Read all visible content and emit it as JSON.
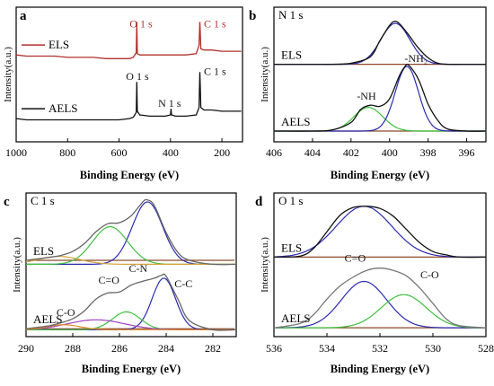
{
  "chart_data": [
    {
      "panel": "a",
      "type": "line",
      "x_label": "Binding Energy (eV)",
      "y_label": "Intensity(a.u.)",
      "xlim": [
        1000,
        120
      ],
      "x_ticks": [
        1000,
        800,
        600,
        400,
        200
      ],
      "series": [
        {
          "name": "ELS",
          "color": "#b0302a",
          "x": [
            1000,
            960,
            900,
            850,
            800,
            750,
            700,
            650,
            600,
            560,
            545,
            533,
            531,
            529,
            520,
            480,
            420,
            400,
            398,
            396,
            380,
            340,
            300,
            289,
            286,
            284,
            282,
            270,
            240,
            200,
            160,
            125
          ],
          "y": [
            71,
            70,
            70,
            70,
            69,
            69,
            69,
            68,
            68,
            68,
            69,
            73,
            98,
            72,
            71,
            71,
            71,
            71,
            71,
            71,
            71,
            71,
            72,
            79,
            98,
            89,
            76,
            75,
            75,
            74,
            74,
            74
          ]
        },
        {
          "name": "AELS",
          "color": "#111111",
          "x": [
            1000,
            960,
            900,
            850,
            800,
            750,
            700,
            650,
            600,
            560,
            545,
            533,
            531,
            529,
            520,
            480,
            420,
            400,
            398,
            396,
            380,
            340,
            300,
            289,
            286,
            284,
            282,
            270,
            240,
            200,
            160,
            125
          ],
          "y": [
            19,
            18,
            18,
            18,
            18,
            18,
            18,
            18,
            18,
            19,
            20,
            24,
            49,
            25,
            22,
            21,
            21,
            22,
            27,
            22,
            21,
            21,
            22,
            28,
            57,
            45,
            28,
            26,
            26,
            25,
            25,
            25
          ]
        }
      ],
      "annotations": [
        {
          "text": "O 1 s",
          "series": "ELS",
          "x": 531
        },
        {
          "text": "C 1 s",
          "series": "ELS",
          "x": 284
        },
        {
          "text": "O 1 s",
          "series": "AELS",
          "x": 531
        },
        {
          "text": "N 1 s",
          "series": "AELS",
          "x": 399
        },
        {
          "text": "C 1 s",
          "series": "AELS",
          "x": 284
        }
      ]
    },
    {
      "panel": "b",
      "type": "line",
      "title": "N 1 s",
      "x_label": "Binding Energy (eV)",
      "y_label": "Intensity(a.u.)",
      "xlim": [
        406,
        395
      ],
      "x_ticks": [
        406,
        404,
        402,
        400,
        398,
        396
      ],
      "series": [
        {
          "name": "ELS",
          "color": "#111111",
          "x": [
            406,
            404,
            403,
            402,
            401,
            400.5,
            400,
            399.7,
            399.4,
            399,
            398.5,
            398,
            397.5,
            397,
            396,
            395
          ],
          "y": [
            72,
            72,
            72,
            73,
            79,
            94,
            108,
            112,
            108,
            99,
            87,
            78,
            73,
            72,
            72,
            72
          ]
        },
        {
          "name": "AELS",
          "color": "#111111",
          "x": [
            406,
            404,
            403,
            402,
            401.5,
            401,
            400.5,
            400,
            399.5,
            399.2,
            399,
            398.5,
            398,
            397.5,
            397,
            396,
            395
          ],
          "y": [
            10,
            10,
            11,
            18,
            30,
            34,
            33,
            40,
            61,
            70,
            71,
            58,
            35,
            20,
            12,
            10,
            10
          ]
        }
      ],
      "annotations": [
        {
          "text": "-NH",
          "x": 401.2
        },
        {
          "text": "-NH₂",
          "x": 399
        }
      ]
    },
    {
      "panel": "c",
      "type": "line",
      "title": "C 1 s",
      "x_label": "Binding Energy (eV)",
      "y_label": "Intensity(a.u.)",
      "xlim": [
        290,
        281
      ],
      "x_ticks": [
        290,
        288,
        286,
        284,
        282
      ],
      "series": [
        {
          "name": "ELS",
          "color": "#666666",
          "x": [
            290,
            289,
            288.5,
            288,
            287.5,
            287,
            286.5,
            286,
            285.5,
            285,
            284.8,
            284.5,
            284,
            283.5,
            283,
            282,
            281
          ],
          "y": [
            77,
            80,
            82,
            86,
            94,
            106,
            114,
            115,
            122,
            136,
            138,
            132,
            105,
            85,
            77,
            73,
            73
          ]
        },
        {
          "name": "AELS",
          "color": "#666666",
          "x": [
            290,
            289,
            288.5,
            288,
            287.5,
            287,
            286.5,
            286,
            285.5,
            285,
            284.5,
            284.2,
            284,
            283.5,
            283,
            282,
            281
          ],
          "y": [
            8,
            11,
            14,
            18,
            26,
            38,
            44,
            45,
            52,
            56,
            59,
            62,
            61,
            38,
            16,
            7,
            7
          ]
        }
      ],
      "annotations": [
        {
          "text": "C-N",
          "x": 285.2
        },
        {
          "text": "C=O",
          "x": 286.3
        },
        {
          "text": "C-C",
          "x": 283.8
        },
        {
          "text": "C-O",
          "x": 288.3
        }
      ]
    },
    {
      "panel": "d",
      "type": "line",
      "title": "O 1 s",
      "x_label": "Binding Energy (eV)",
      "y_label": "Intensity(a.u.)",
      "xlim": [
        536,
        528
      ],
      "x_ticks": [
        536,
        534,
        532,
        530,
        528
      ],
      "series": [
        {
          "name": "ELS",
          "color": "#111111",
          "x": [
            536,
            535,
            534.5,
            534,
            533.5,
            533,
            532.5,
            532,
            531.5,
            531,
            530.5,
            530,
            529.5,
            529,
            528
          ],
          "y": [
            72,
            73,
            80,
            95,
            110,
            117,
            118,
            116,
            109,
            97,
            85,
            77,
            74,
            72,
            72
          ]
        },
        {
          "name": "AELS",
          "color": "#777777",
          "x": [
            536,
            535,
            534.5,
            534,
            533.5,
            533,
            532.5,
            532,
            531.5,
            531,
            530.5,
            530,
            529.5,
            529,
            528
          ],
          "y": [
            8,
            12,
            20,
            34,
            46,
            54,
            60,
            62,
            60,
            55,
            44,
            30,
            16,
            10,
            8
          ]
        }
      ],
      "annotations": [
        {
          "text": "C=O",
          "x": 532.8
        },
        {
          "text": "C-O",
          "x": 530.6
        }
      ]
    }
  ]
}
